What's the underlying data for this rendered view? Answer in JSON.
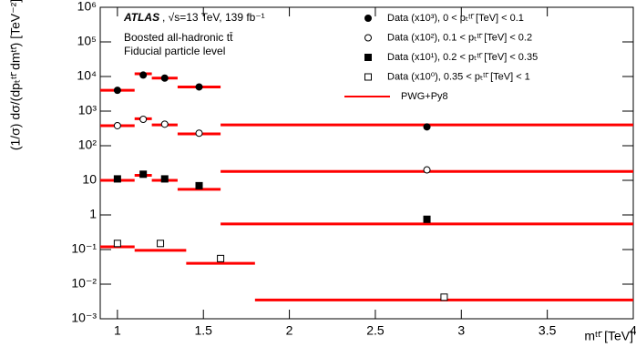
{
  "chart_data": {
    "type": "scatter",
    "log_y": true,
    "xlabel": "mᵗᵗ̄ [TeV]",
    "ylabel": "(1/σ) dσ/(dpₜᵗᵗ̄ dmᵗᵗ̄) [TeV⁻²]",
    "annotations": [
      "ATLAS",
      ", √s=13 TeV, 139 fb⁻¹",
      "Boosted all-hadronic tt̄",
      "Fiducial particle level"
    ],
    "xlim": [
      0.9,
      4
    ],
    "xticks": [
      1,
      1.5,
      2,
      2.5,
      3,
      3.5,
      4
    ],
    "ylim": [
      0.001,
      1000000
    ],
    "yticks": [
      {
        "value": 0.001,
        "label": "10⁻³"
      },
      {
        "value": 0.01,
        "label": "10⁻²"
      },
      {
        "value": 0.1,
        "label": "10⁻¹"
      },
      1,
      10,
      {
        "value": 100,
        "label": "10²"
      },
      {
        "value": 1000,
        "label": "10³"
      },
      {
        "value": 10000,
        "label": "10⁴"
      },
      {
        "value": 100000,
        "label": "10⁵"
      },
      {
        "value": 1000000,
        "label": "10⁶"
      }
    ],
    "series": [
      {
        "name": "Data (x10³), 0 < pₜᵗᵗ̄ [TeV] < 0.1",
        "color": "#000000",
        "marker": "circle",
        "x": [
          1,
          1.15,
          1.275,
          1.475,
          2.8
        ],
        "values": [
          4000,
          11000,
          9000,
          5000,
          350
        ]
      },
      {
        "name": "Data (x10²), 0.1 < pₜᵗᵗ̄ [TeV] < 0.2",
        "color": "#000000",
        "marker": "open-circle",
        "x": [
          1,
          1.15,
          1.275,
          1.475,
          2.8
        ],
        "values": [
          380,
          580,
          420,
          230,
          20
        ]
      },
      {
        "name": "Data (x10¹), 0.2 < pₜᵗᵗ̄ [TeV] < 0.35",
        "color": "#000000",
        "marker": "square",
        "x": [
          1,
          1.15,
          1.275,
          1.475,
          2.8
        ],
        "values": [
          11,
          15,
          11,
          7,
          0.75
        ]
      },
      {
        "name": "Data (x10⁰), 0.35 < pₜᵗᵗ̄ [TeV] < 1",
        "color": "#000000",
        "marker": "open-square",
        "x": [
          1,
          1.25,
          1.6,
          2.9
        ],
        "values": [
          0.15,
          0.15,
          0.055,
          0.0042
        ]
      }
    ],
    "prediction": {
      "name": "PWG+Py8",
      "color": "#ff0000",
      "groups": [
        {
          "bins": [
            0.9,
            1.1,
            1.2,
            1.35,
            1.6,
            4
          ],
          "values": [
            4000,
            12000,
            9000,
            5000,
            400
          ]
        },
        {
          "bins": [
            0.9,
            1.1,
            1.2,
            1.35,
            1.6,
            4
          ],
          "values": [
            380,
            600,
            400,
            220,
            18
          ]
        },
        {
          "bins": [
            0.9,
            1.1,
            1.2,
            1.35,
            1.6,
            4
          ],
          "values": [
            10,
            14,
            10,
            5.5,
            0.55
          ]
        },
        {
          "bins": [
            0.9,
            1.1,
            1.4,
            1.8,
            4
          ],
          "values": [
            0.12,
            0.095,
            0.04,
            0.0035
          ]
        }
      ]
    }
  }
}
